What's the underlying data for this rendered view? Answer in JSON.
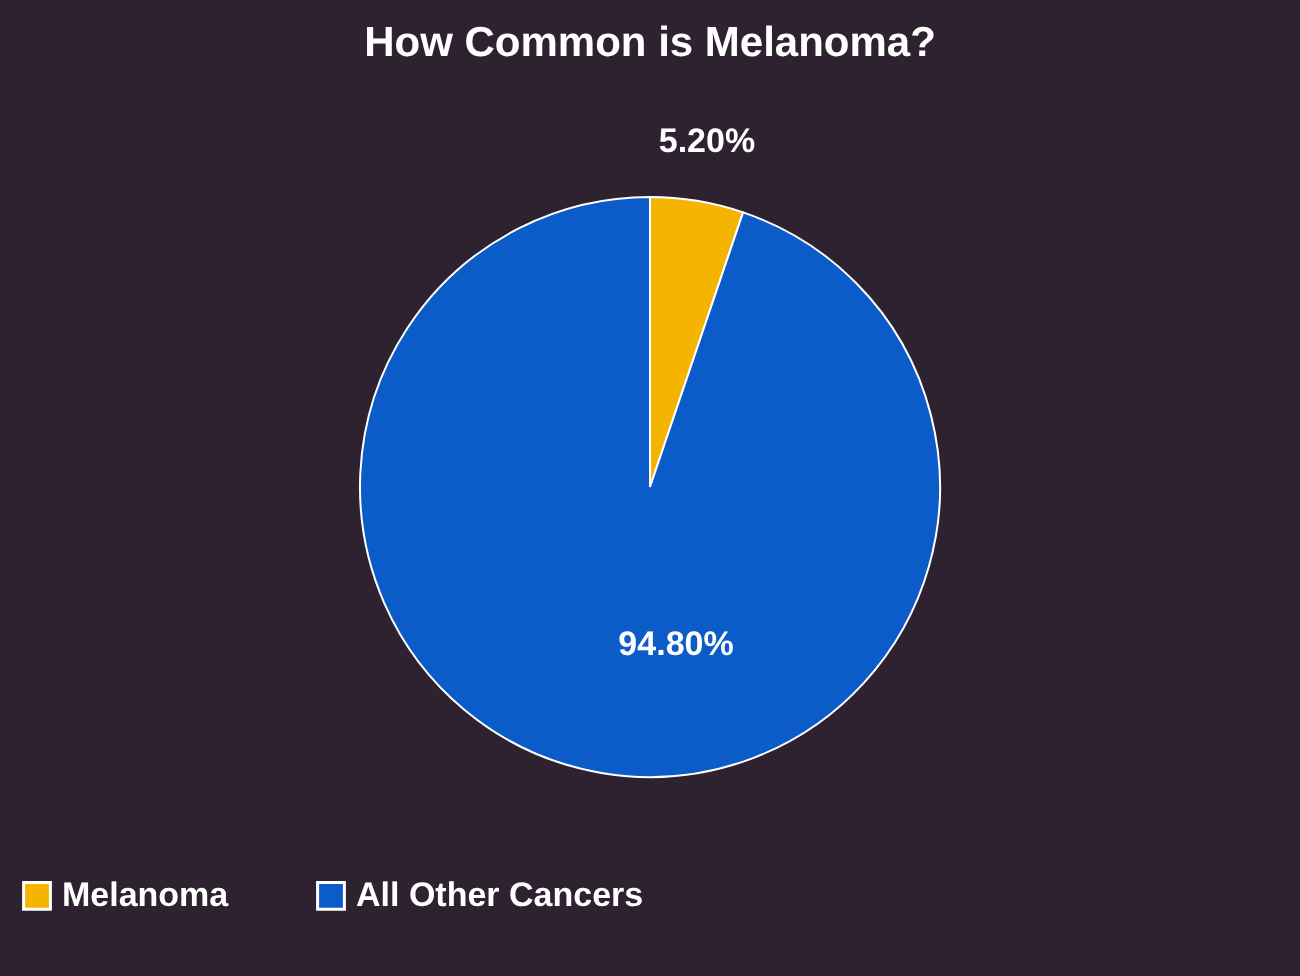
{
  "chart_data": {
    "type": "pie",
    "title": "How Common is Melanoma?",
    "categories": [
      "Melanoma",
      "All Other Cancers"
    ],
    "values": [
      5.2,
      94.8
    ],
    "colors": [
      "#f5b400",
      "#0b5cc8"
    ],
    "value_labels": [
      "5.20%",
      "94.80%"
    ],
    "legend": "bottom"
  }
}
